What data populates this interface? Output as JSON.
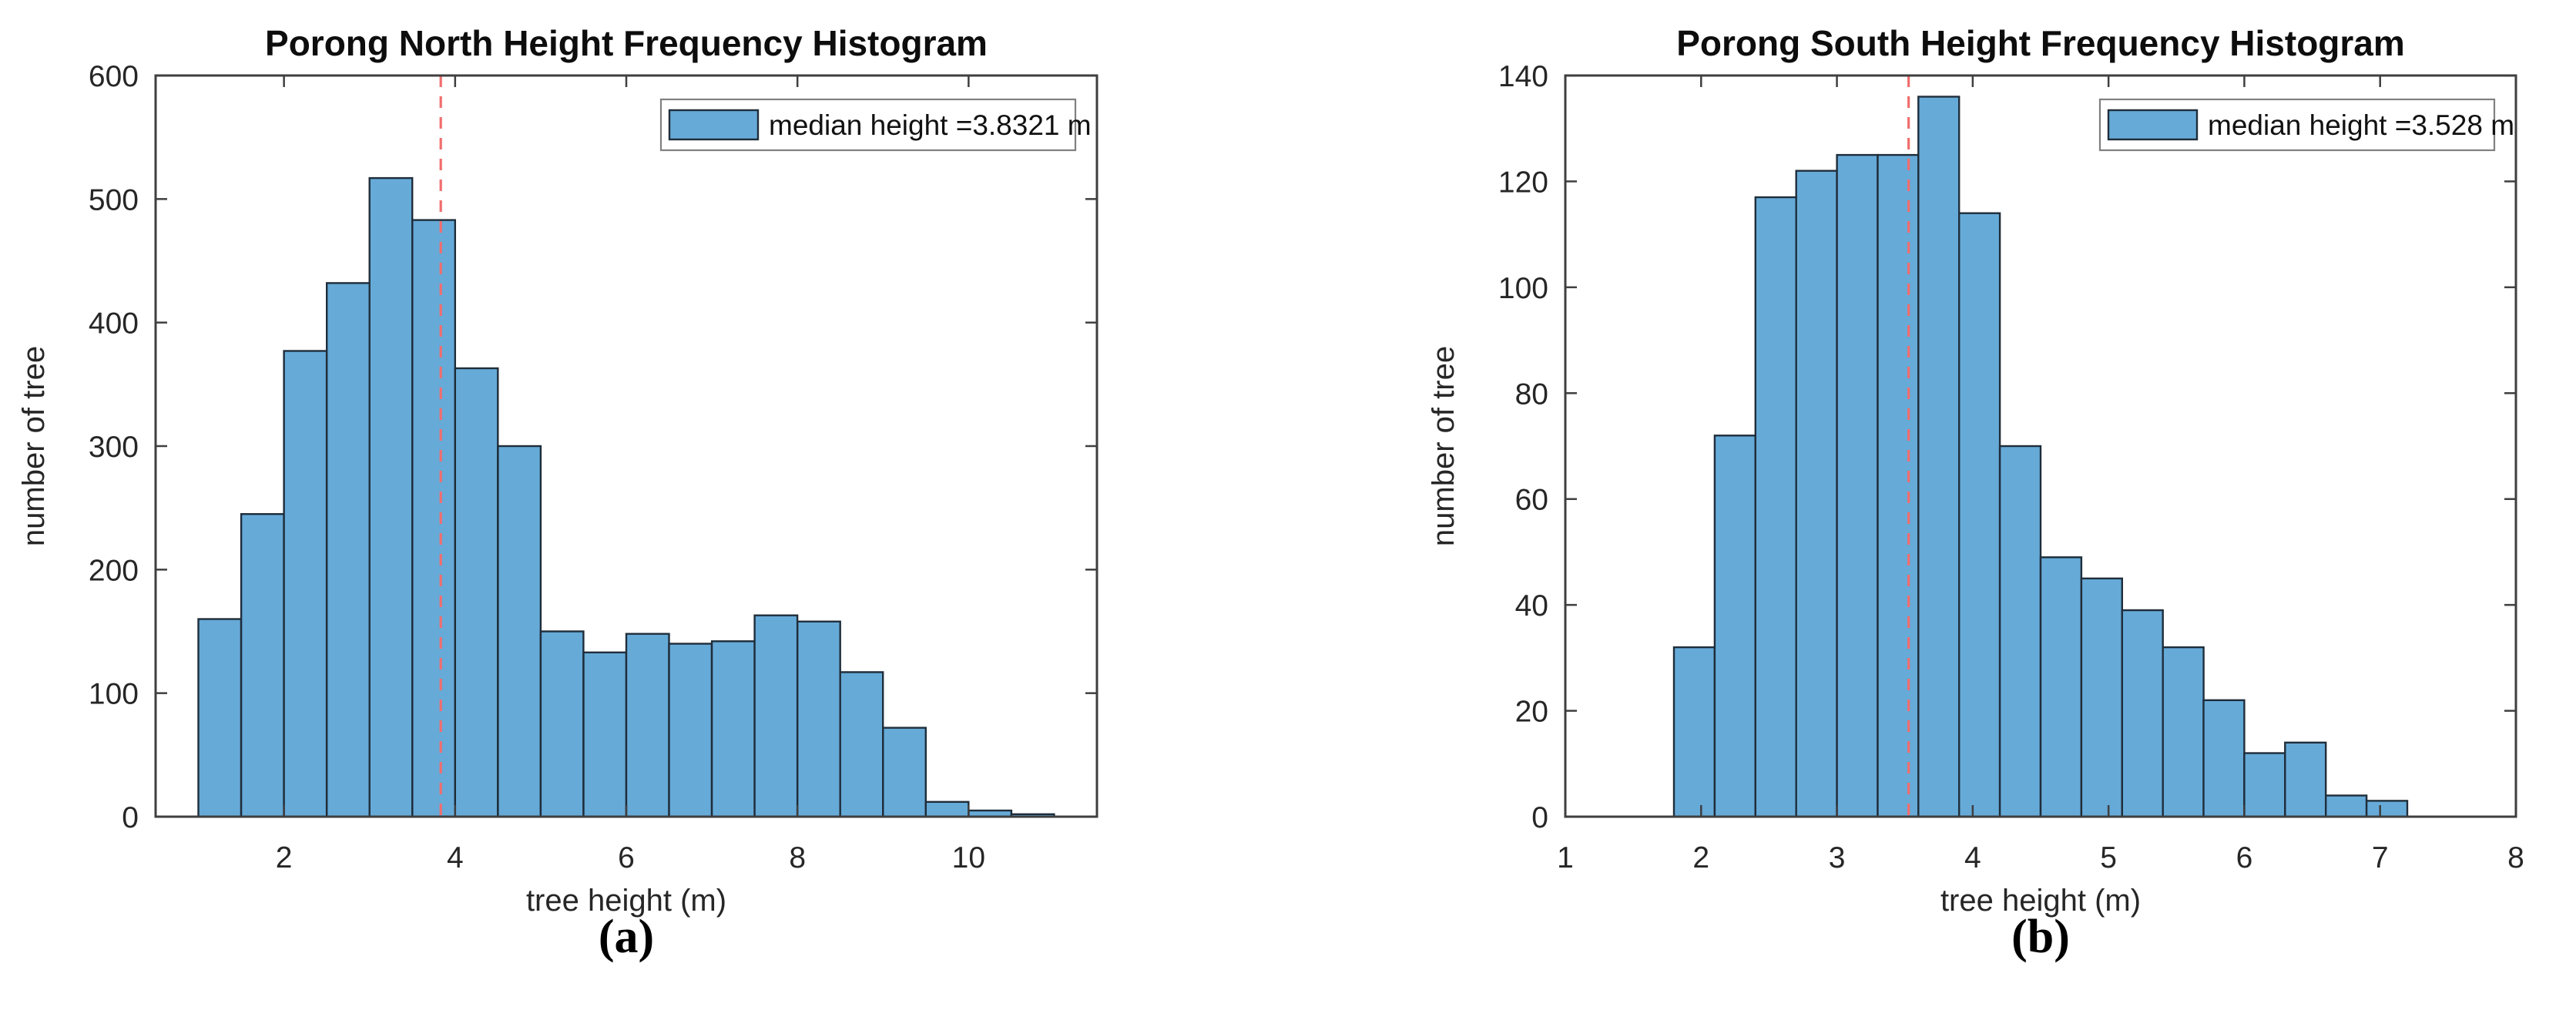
{
  "page": {
    "background": "#ffffff"
  },
  "chart_data": [
    {
      "type": "bar",
      "subtype": "histogram",
      "title": "Porong North Height Frequency Histogram",
      "xlabel": "tree height (m)",
      "ylabel": "number of tree",
      "caption": "(a)",
      "bin_edges": [
        1.0,
        1.5,
        2.0,
        2.5,
        3.0,
        3.5,
        4.0,
        4.5,
        5.0,
        5.5,
        6.0,
        6.5,
        7.0,
        7.5,
        8.0,
        8.5,
        9.0,
        9.5,
        10.0,
        10.5,
        11.0
      ],
      "values": [
        160,
        245,
        377,
        432,
        517,
        483,
        363,
        300,
        150,
        133,
        148,
        140,
        142,
        163,
        158,
        117,
        72,
        12,
        5,
        2
      ],
      "median": 3.8321,
      "legend": {
        "label": "median height =3.8321 m",
        "position": "top-right"
      },
      "xlim": [
        0.5,
        11.5
      ],
      "ylim": [
        0,
        600
      ],
      "xticks": [
        2,
        4,
        6,
        8,
        10
      ],
      "yticks": [
        0,
        100,
        200,
        300,
        400,
        500,
        600
      ],
      "grid": false,
      "colors": {
        "bar_fill": "#66aad8",
        "bar_edge": "#1f2d3a",
        "median_line": "#f06d6d",
        "axis": "#3f3f3f",
        "tick_label": "#262626",
        "title": "#0d0d0d",
        "legend_border": "#808080"
      }
    },
    {
      "type": "bar",
      "subtype": "histogram",
      "title": "Porong South Height Frequency Histogram",
      "xlabel": "tree height (m)",
      "ylabel": "number of tree",
      "caption": "(b)",
      "bin_edges": [
        1.8,
        2.1,
        2.4,
        2.7,
        3.0,
        3.3,
        3.6,
        3.9,
        4.2,
        4.5,
        4.8,
        5.1,
        5.4,
        5.7,
        6.0,
        6.3,
        6.6,
        6.9,
        7.2
      ],
      "values": [
        32,
        72,
        117,
        122,
        125,
        125,
        136,
        114,
        70,
        49,
        45,
        39,
        32,
        22,
        12,
        14,
        4,
        3
      ],
      "median": 3.528,
      "legend": {
        "label": "median height =3.528 m",
        "position": "top-right"
      },
      "xlim": [
        1,
        8
      ],
      "ylim": [
        0,
        140
      ],
      "xticks": [
        1,
        2,
        3,
        4,
        5,
        6,
        7,
        8
      ],
      "yticks": [
        0,
        20,
        40,
        60,
        80,
        100,
        120,
        140
      ],
      "grid": false,
      "colors": {
        "bar_fill": "#66aad8",
        "bar_edge": "#1f2d3a",
        "median_line": "#f06d6d",
        "axis": "#3f3f3f",
        "tick_label": "#262626",
        "title": "#0d0d0d",
        "legend_border": "#808080"
      }
    }
  ]
}
